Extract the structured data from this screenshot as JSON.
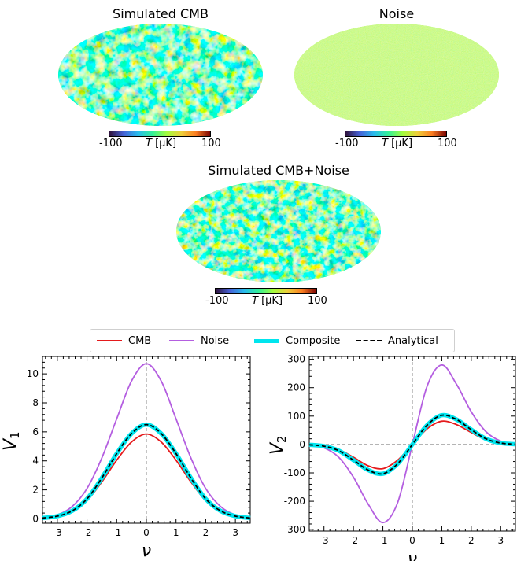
{
  "maps": [
    {
      "title": "Simulated CMB",
      "colorbar": {
        "min": "-100",
        "max": "100",
        "label_italic": "T",
        "label_unit": "[μK]"
      }
    },
    {
      "title": "Noise",
      "colorbar": {
        "min": "-100",
        "max": "100",
        "label_italic": "T",
        "label_unit": "[μK]"
      }
    },
    {
      "title": "Simulated CMB+Noise",
      "colorbar": {
        "min": "-100",
        "max": "100",
        "label_italic": "T",
        "label_unit": "[μK]"
      }
    }
  ],
  "legend": {
    "placement": "top-center",
    "items": [
      {
        "label": "CMB",
        "color": "#e41a1c",
        "style": "solid"
      },
      {
        "label": "Noise",
        "color": "#b45ee0",
        "style": "solid"
      },
      {
        "label": "Composite",
        "color": "#00e5ee",
        "style": "thick"
      },
      {
        "label": "Analytical",
        "color": "#000000",
        "style": "dashed"
      }
    ]
  },
  "chart_data": [
    {
      "type": "line",
      "ylabel": "V",
      "ylabel_sub": "1",
      "xlabel": "ν",
      "xlim": [
        -3.5,
        3.5
      ],
      "ylim": [
        -0.3,
        11.2
      ],
      "xticks": [
        -3,
        -2,
        -1,
        0,
        1,
        2,
        3
      ],
      "yticks": [
        0,
        2,
        4,
        6,
        8,
        10
      ],
      "x": [
        -3.5,
        -3.0,
        -2.5,
        -2.0,
        -1.5,
        -1.0,
        -0.5,
        0.0,
        0.5,
        1.0,
        1.5,
        2.0,
        2.5,
        3.0,
        3.5
      ],
      "series": [
        {
          "name": "CMB",
          "color": "#e41a1c",
          "values": [
            0.06,
            0.17,
            0.5,
            1.25,
            2.55,
            4.05,
            5.3,
            5.85,
            5.3,
            4.05,
            2.55,
            1.25,
            0.5,
            0.17,
            0.06
          ]
        },
        {
          "name": "Noise",
          "color": "#b45ee0",
          "values": [
            0.08,
            0.28,
            0.85,
            2.1,
            4.2,
            6.9,
            9.5,
            10.7,
            9.5,
            6.9,
            4.2,
            2.1,
            0.85,
            0.28,
            0.08
          ]
        },
        {
          "name": "Composite",
          "color": "#00e5ee",
          "values": [
            0.06,
            0.19,
            0.55,
            1.38,
            2.82,
            4.5,
            5.88,
            6.5,
            5.88,
            4.5,
            2.82,
            1.38,
            0.55,
            0.19,
            0.06
          ]
        },
        {
          "name": "Analytical",
          "color": "#000000",
          "values": [
            0.06,
            0.19,
            0.55,
            1.38,
            2.82,
            4.5,
            5.88,
            6.5,
            5.88,
            4.5,
            2.82,
            1.38,
            0.55,
            0.19,
            0.06
          ]
        }
      ],
      "reference_lines": {
        "vertical_x": 0,
        "horizontal_y": 0
      }
    },
    {
      "type": "line",
      "ylabel": "V",
      "ylabel_sub": "2",
      "xlabel": "ν",
      "xlim": [
        -3.5,
        3.5
      ],
      "ylim": [
        -305,
        310
      ],
      "xticks": [
        -3,
        -2,
        -1,
        0,
        1,
        2,
        3
      ],
      "yticks": [
        -300,
        -200,
        -100,
        0,
        100,
        200,
        300
      ],
      "x": [
        -3.5,
        -3.0,
        -2.5,
        -2.0,
        -1.5,
        -1.0,
        -0.5,
        0.0,
        0.5,
        1.0,
        1.5,
        2.0,
        2.5,
        3.0,
        3.5
      ],
      "series": [
        {
          "name": "CMB",
          "color": "#e41a1c",
          "values": [
            -1,
            -5,
            -18,
            -45,
            -75,
            -85,
            -55,
            0,
            55,
            82,
            70,
            42,
            16,
            4,
            1
          ]
        },
        {
          "name": "Noise",
          "color": "#b45ee0",
          "values": [
            -3,
            -12,
            -45,
            -115,
            -210,
            -275,
            -205,
            0,
            205,
            280,
            212,
            115,
            45,
            12,
            3
          ]
        },
        {
          "name": "Composite",
          "color": "#00e5ee",
          "values": [
            -1,
            -6,
            -22,
            -55,
            -90,
            -103,
            -68,
            0,
            68,
            103,
            88,
            52,
            20,
            5,
            1
          ]
        },
        {
          "name": "Analytical",
          "color": "#000000",
          "values": [
            -1,
            -6,
            -22,
            -55,
            -90,
            -103,
            -68,
            0,
            68,
            103,
            88,
            52,
            20,
            5,
            1
          ]
        }
      ],
      "reference_lines": {
        "vertical_x": 0,
        "horizontal_y": 0
      }
    }
  ]
}
